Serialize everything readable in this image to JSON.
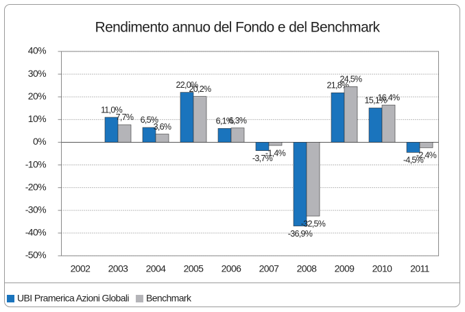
{
  "chart_data": {
    "type": "bar",
    "title": "Rendimento annuo del Fondo e del Benchmark",
    "categories": [
      "2002",
      "2003",
      "2004",
      "2005",
      "2006",
      "2007",
      "2008",
      "2009",
      "2010",
      "2011"
    ],
    "series": [
      {
        "name": "UBI Pramerica Azioni Globali",
        "color": "#1a74bd",
        "values": [
          null,
          11.0,
          6.5,
          22.0,
          6.1,
          -3.7,
          -36.9,
          21.8,
          15.1,
          -4.5
        ],
        "value_labels": [
          null,
          "11,0%",
          "6,5%",
          "22,0%",
          "6,1%",
          "-3,7%",
          "-36,9%",
          "21,8%",
          "15,1%",
          "-4,5%"
        ]
      },
      {
        "name": "Benchmark",
        "color": "#b4b4b8",
        "values": [
          null,
          7.7,
          3.6,
          20.2,
          6.3,
          -1.4,
          -32.5,
          24.5,
          16.4,
          -2.4
        ],
        "value_labels": [
          null,
          "7,7%",
          "3,6%",
          "20,2%",
          "6,3%",
          "-1,4%",
          "-32,5%",
          "24,5%",
          "16,4%",
          "-2,4%"
        ]
      }
    ],
    "ylim": [
      -50,
      40
    ],
    "yticks": [
      {
        "value": -50,
        "label": "-50%"
      },
      {
        "value": -40,
        "label": "-40%"
      },
      {
        "value": -30,
        "label": "-30%"
      },
      {
        "value": -20,
        "label": "-20%"
      },
      {
        "value": -10,
        "label": "-10%"
      },
      {
        "value": 0,
        "label": "0%"
      },
      {
        "value": 10,
        "label": "10%"
      },
      {
        "value": 20,
        "label": "20%"
      },
      {
        "value": 30,
        "label": "30%"
      },
      {
        "value": 40,
        "label": "40%"
      }
    ],
    "grid": true,
    "legend": "bottom-left"
  }
}
